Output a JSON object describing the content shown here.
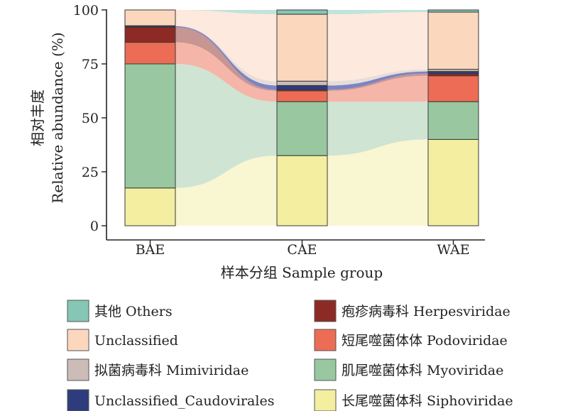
{
  "chart_data": {
    "type": "stacked-bar-alluvial",
    "title": "",
    "xlabel": "样本分组 Sample group",
    "ylabel_cn": "相对丰度",
    "ylabel": "Relative abundance (%)",
    "ylim": [
      0,
      100
    ],
    "yticks": [
      0,
      25,
      50,
      75,
      100
    ],
    "categories": [
      "BAE",
      "CAE",
      "WAE"
    ],
    "series": [
      {
        "name": "长尾噬菌体科 Siphoviridae",
        "color": "#f3eea0",
        "flow_color": "#f9f6d2",
        "values": [
          17.5,
          32.5,
          40
        ]
      },
      {
        "name": "肌尾噬菌体科 Myoviridae",
        "color": "#98c7a0",
        "flow_color": "#cfe4d2",
        "values": [
          57.5,
          25,
          17.5
        ]
      },
      {
        "name": "短尾噬菌体体 Podoviridae",
        "color": "#ec6c55",
        "flow_color": "#f5b5a8",
        "values": [
          10,
          5,
          12
        ]
      },
      {
        "name": "疱疹病毒科 Herpesviridae",
        "color": "#8e2a25",
        "flow_color": "#c79592",
        "values": [
          7,
          0.5,
          1
        ]
      },
      {
        "name": "Unclassified_Caudovirales",
        "color": "#2e3c7e",
        "flow_color": "#7d84c2",
        "values": [
          0.5,
          2,
          1
        ]
      },
      {
        "name": "拟菌病毒科 Mimiviridae",
        "color": "#cbbcb7",
        "flow_color": "#e6ddd9",
        "values": [
          0.2,
          2,
          1
        ]
      },
      {
        "name": "Unclassified",
        "color": "#fbd7bd",
        "flow_color": "#fde9dd",
        "values": [
          7.3,
          31,
          26.5
        ]
      },
      {
        "name": "其他 Others",
        "color": "#85c6b5",
        "flow_color": "#c2e3da",
        "values": [
          0,
          2,
          1
        ]
      }
    ],
    "legend_order": [
      "其他 Others",
      "疱疹病毒科 Herpesviridae",
      "Unclassified",
      "短尾噬菌体体 Podoviridae",
      "拟菌病毒科 Mimiviridae",
      "肌尾噬菌体科 Myoviridae",
      "Unclassified_Caudovirales",
      "长尾噬菌体科 Siphoviridae"
    ],
    "legend_position": "bottom"
  }
}
